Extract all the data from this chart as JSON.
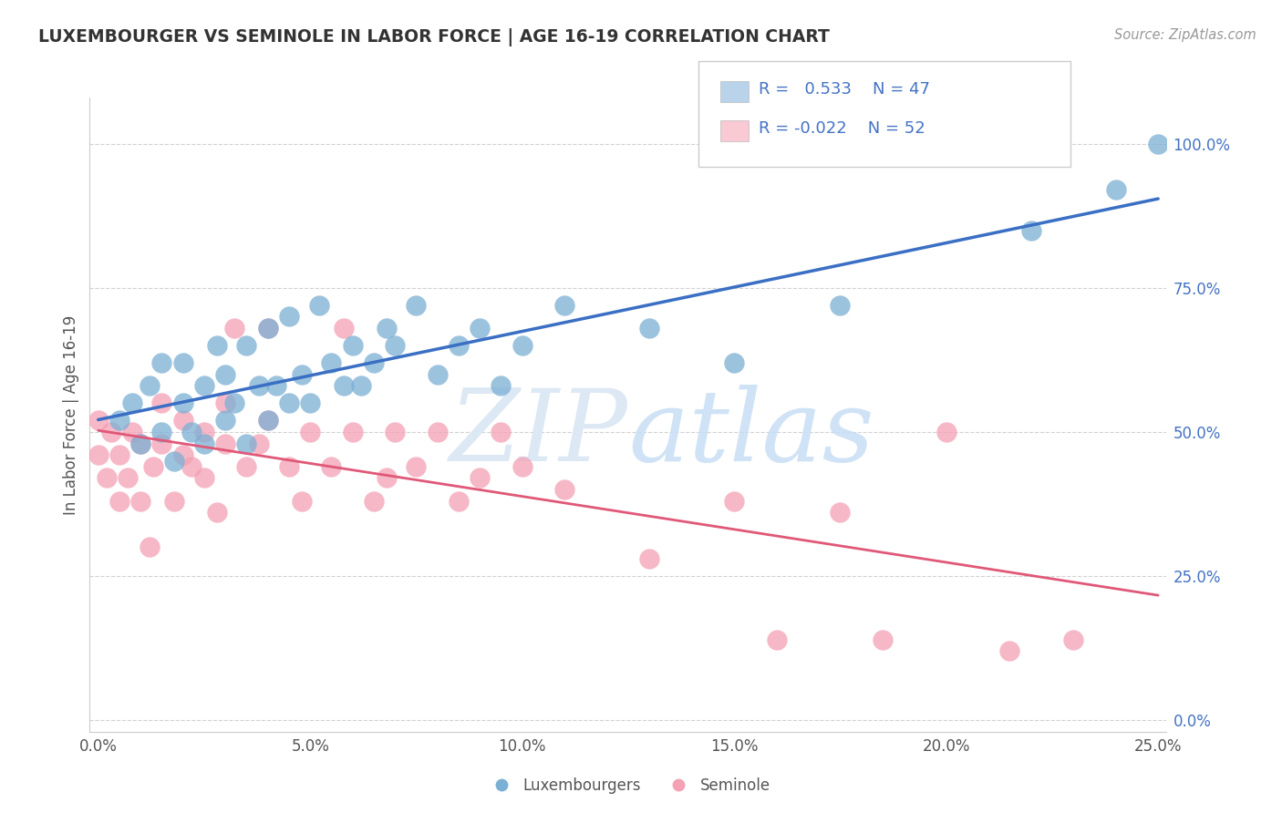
{
  "title": "LUXEMBOURGER VS SEMINOLE IN LABOR FORCE | AGE 16-19 CORRELATION CHART",
  "source": "Source: ZipAtlas.com",
  "ylabel": "In Labor Force | Age 16-19",
  "xlim": [
    -0.002,
    0.252
  ],
  "ylim": [
    -0.02,
    1.08
  ],
  "xticks": [
    0.0,
    0.05,
    0.1,
    0.15,
    0.2,
    0.25
  ],
  "yticks": [
    0.0,
    0.25,
    0.5,
    0.75,
    1.0
  ],
  "xtick_labels": [
    "0.0%",
    "5.0%",
    "10.0%",
    "15.0%",
    "20.0%",
    "25.0%"
  ],
  "ytick_labels": [
    "0.0%",
    "25.0%",
    "50.0%",
    "75.0%",
    "100.0%"
  ],
  "blue_R": 0.533,
  "blue_N": 47,
  "pink_R": -0.022,
  "pink_N": 52,
  "blue_color": "#7bafd4",
  "pink_color": "#f4a0b5",
  "blue_legend_color": "#b8d3ea",
  "pink_legend_color": "#f9c9d4",
  "trend_blue": "#3a6fc4",
  "trend_pink": "#e05878",
  "watermark_color": "#dde8f5",
  "legend_text_color": "#4472c4",
  "blue_scatter_x": [
    0.005,
    0.008,
    0.01,
    0.012,
    0.015,
    0.015,
    0.018,
    0.02,
    0.02,
    0.022,
    0.025,
    0.025,
    0.028,
    0.03,
    0.03,
    0.032,
    0.035,
    0.035,
    0.038,
    0.04,
    0.04,
    0.042,
    0.045,
    0.045,
    0.048,
    0.05,
    0.052,
    0.055,
    0.058,
    0.06,
    0.062,
    0.065,
    0.068,
    0.07,
    0.075,
    0.08,
    0.085,
    0.09,
    0.095,
    0.1,
    0.11,
    0.13,
    0.15,
    0.175,
    0.22,
    0.24,
    0.25
  ],
  "blue_scatter_y": [
    0.52,
    0.55,
    0.48,
    0.58,
    0.5,
    0.62,
    0.45,
    0.55,
    0.62,
    0.5,
    0.48,
    0.58,
    0.65,
    0.52,
    0.6,
    0.55,
    0.48,
    0.65,
    0.58,
    0.52,
    0.68,
    0.58,
    0.55,
    0.7,
    0.6,
    0.55,
    0.72,
    0.62,
    0.58,
    0.65,
    0.58,
    0.62,
    0.68,
    0.65,
    0.72,
    0.6,
    0.65,
    0.68,
    0.58,
    0.65,
    0.72,
    0.68,
    0.62,
    0.72,
    0.85,
    0.92,
    1.0
  ],
  "pink_scatter_x": [
    0.0,
    0.0,
    0.002,
    0.003,
    0.005,
    0.005,
    0.007,
    0.008,
    0.01,
    0.01,
    0.012,
    0.013,
    0.015,
    0.015,
    0.018,
    0.02,
    0.02,
    0.022,
    0.025,
    0.025,
    0.028,
    0.03,
    0.03,
    0.032,
    0.035,
    0.038,
    0.04,
    0.04,
    0.045,
    0.048,
    0.05,
    0.055,
    0.058,
    0.06,
    0.065,
    0.068,
    0.07,
    0.075,
    0.08,
    0.085,
    0.09,
    0.095,
    0.1,
    0.11,
    0.13,
    0.15,
    0.16,
    0.175,
    0.185,
    0.2,
    0.215,
    0.23
  ],
  "pink_scatter_y": [
    0.46,
    0.52,
    0.42,
    0.5,
    0.38,
    0.46,
    0.42,
    0.5,
    0.38,
    0.48,
    0.3,
    0.44,
    0.48,
    0.55,
    0.38,
    0.46,
    0.52,
    0.44,
    0.42,
    0.5,
    0.36,
    0.48,
    0.55,
    0.68,
    0.44,
    0.48,
    0.68,
    0.52,
    0.44,
    0.38,
    0.5,
    0.44,
    0.68,
    0.5,
    0.38,
    0.42,
    0.5,
    0.44,
    0.5,
    0.38,
    0.42,
    0.5,
    0.44,
    0.4,
    0.28,
    0.38,
    0.14,
    0.36,
    0.14,
    0.5,
    0.12,
    0.14
  ]
}
